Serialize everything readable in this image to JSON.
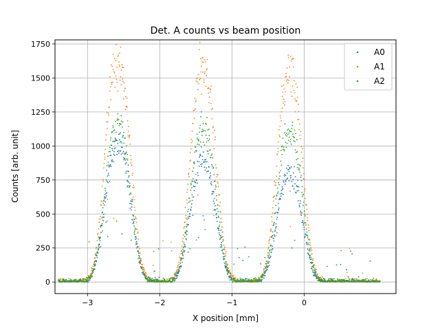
{
  "chart_data": {
    "type": "scatter",
    "title": "Det. A counts vs beam position",
    "xlabel": "X position [mm]",
    "ylabel": "Counts [arb. unit]",
    "xlim": [
      -3.45,
      1.27
    ],
    "ylim": [
      -85,
      1780
    ],
    "xticks": [
      -3,
      -2,
      -1,
      0
    ],
    "xtick_labels": [
      "−3",
      "−2",
      "−1",
      "0"
    ],
    "yticks": [
      0,
      250,
      500,
      750,
      1000,
      1250,
      1500,
      1750
    ],
    "ytick_labels": [
      "0",
      "250",
      "500",
      "750",
      "1000",
      "1250",
      "1500",
      "1750"
    ],
    "grid": true,
    "legend_position": "top-right",
    "x_range": [
      -3.4,
      1.05
    ],
    "peak_centers": [
      -2.58,
      -1.4,
      -0.2
    ],
    "peak_width": 0.28,
    "series": [
      {
        "name": "A0",
        "color": "#1f77b4",
        "peak_heights": [
          1000,
          900,
          800
        ],
        "marker": "dot"
      },
      {
        "name": "A1",
        "color": "#ff7f0e",
        "peak_heights": [
          1600,
          1570,
          1520
        ],
        "marker": "dot"
      },
      {
        "name": "A2",
        "color": "#2ca02c",
        "peak_heights": [
          1150,
          1120,
          1100
        ],
        "marker": "dot"
      }
    ]
  }
}
